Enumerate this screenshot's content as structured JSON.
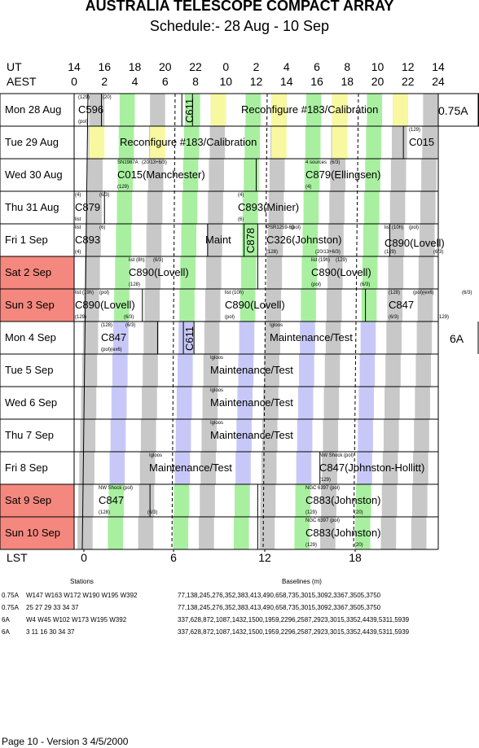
{
  "header": {
    "title": "AUSTRALIA TELESCOPE COMPACT ARRAY",
    "subtitle": "Schedule:- 28 Aug - 10 Sep"
  },
  "axes": {
    "ut_label": "UT",
    "aest_label": "AEST",
    "lst_label": "LST",
    "ut_ticks": [
      "14",
      "16",
      "18",
      "20",
      "22",
      "0",
      "2",
      "4",
      "6",
      "8",
      "10",
      "12",
      "14"
    ],
    "aest_ticks": [
      "0",
      "2",
      "4",
      "6",
      "8",
      "10",
      "12",
      "14",
      "16",
      "18",
      "20",
      "22",
      "24"
    ],
    "lst_ticks": [
      "0",
      "6",
      "12",
      "18"
    ]
  },
  "days": [
    {
      "label": "Mon  28 Aug",
      "weekend": false
    },
    {
      "label": "Tue  29 Aug",
      "weekend": false
    },
    {
      "label": "Wed  30 Aug",
      "weekend": false
    },
    {
      "label": "Thu  31 Aug",
      "weekend": false
    },
    {
      "label": "Fri    1  Sep",
      "weekend": false
    },
    {
      "label": "Sat   2  Sep",
      "weekend": true
    },
    {
      "label": "Sun   3  Sep",
      "weekend": true
    },
    {
      "label": "Mon   4  Sep",
      "weekend": false
    },
    {
      "label": "Tue   5  Sep",
      "weekend": false
    },
    {
      "label": "Wed   6  Sep",
      "weekend": false
    },
    {
      "label": "Thu   7  Sep",
      "weekend": false
    },
    {
      "label": "Fri    8  Sep",
      "weekend": false
    },
    {
      "label": "Sat   9  Sep",
      "weekend": true
    },
    {
      "label": "Sun  10  Sep",
      "weekend": true
    }
  ],
  "configs": {
    "first": "0.75A",
    "second": "6A"
  },
  "blocks": [
    {
      "row": 0,
      "text": "C596",
      "small": [
        "(129)",
        "(pol)",
        "(20)"
      ]
    },
    {
      "row": 0,
      "text": "C611",
      "vertical": true
    },
    {
      "row": 0,
      "text": "Reconfigure #183/Calibration"
    },
    {
      "row": 1,
      "text": "Reconfigure #183/Calibration"
    },
    {
      "row": 1,
      "text": "C015",
      "small": [
        "(129)"
      ]
    },
    {
      "row": 2,
      "text": "C015(Manchester)",
      "small": [
        "SN1987A",
        "(129)",
        "(20/13+6/3)"
      ]
    },
    {
      "row": 2,
      "text": "C879(Ellingsen)",
      "small": [
        "4 sources",
        "(4)",
        "(6/3)"
      ]
    },
    {
      "row": 3,
      "text": "C879",
      "small": [
        "(4)",
        "list",
        "(6/3)"
      ]
    },
    {
      "row": 3,
      "text": "C893(Minier)",
      "small": [
        "(4)",
        "(6)"
      ]
    },
    {
      "row": 4,
      "text": "C893",
      "small": [
        "list",
        "(4)",
        "(6)"
      ]
    },
    {
      "row": 4,
      "text": "Maint"
    },
    {
      "row": 4,
      "text": "C878",
      "vertical": true
    },
    {
      "row": 4,
      "text": "C326(Johnston)",
      "small": [
        "PSR1259-63",
        "(128)",
        "(pol)",
        "(20/13+6/3)"
      ]
    },
    {
      "row": 4,
      "text": "C890(Lovell)",
      "small": [
        "list (10h)",
        "(129)",
        "(pol)",
        "(6/3)"
      ]
    },
    {
      "row": 5,
      "text": "C890(Lovell)",
      "small": [
        "list (8h)",
        "(128)",
        "(6/3)"
      ]
    },
    {
      "row": 5,
      "text": "C890(Lovell)",
      "small": [
        "list (19h)",
        "(pol)",
        "(129)",
        "(6/3)"
      ]
    },
    {
      "row": 6,
      "text": "C890(Lovell)",
      "small": [
        "list (19h)",
        "(129)",
        "(pol)",
        "(6/3)"
      ]
    },
    {
      "row": 6,
      "text": "C890(Lovell)",
      "small": [
        "list (10h)",
        "(pol)"
      ]
    },
    {
      "row": 6,
      "text": "C847",
      "small": [
        "(128)",
        "(6/3)",
        "(pol)(ex6)",
        "(129)",
        "(6/3)"
      ]
    },
    {
      "row": 7,
      "text": "C847",
      "small": [
        "(128)",
        "(pol)(ex6)",
        "(6/3)"
      ]
    },
    {
      "row": 7,
      "text": "C611",
      "vertical": true
    },
    {
      "row": 7,
      "text": "Maintenance/Test",
      "small": [
        "Igloos"
      ]
    },
    {
      "row": 8,
      "text": "Maintenance/Test",
      "small": [
        "Igloos"
      ]
    },
    {
      "row": 9,
      "text": "Maintenance/Test",
      "small": [
        "Igloos"
      ]
    },
    {
      "row": 10,
      "text": "Maintenance/Test",
      "small": [
        "Igloos"
      ]
    },
    {
      "row": 11,
      "text": "Maintenance/Test",
      "small": [
        "Igloos"
      ]
    },
    {
      "row": 11,
      "text": "C847(Johnston-Hollitt)",
      "small": [
        "NW Shock",
        "(129)",
        "(pol)"
      ]
    },
    {
      "row": 12,
      "text": "C847",
      "small": [
        "NW Shock",
        "(128)",
        "(pol)",
        "(6/3)"
      ]
    },
    {
      "row": 12,
      "text": "C883(Johnston)",
      "small": [
        "NGC 6397",
        "(129)",
        "(pol)",
        "(20)"
      ]
    },
    {
      "row": 13,
      "text": "C883(Johnston)",
      "small": [
        "NGC 6397",
        "(129)",
        "(pol)",
        "(20)"
      ]
    }
  ],
  "stations": {
    "stations_header": "Stations",
    "baselines_header": "Baselines (m)",
    "rows": [
      {
        "config": "0.75A",
        "stations": "W147 W163 W172 W190 W195 W392",
        "baselines": "77,138,245,276,352,383,413,490,658,735,3015,3092,3367,3505,3750"
      },
      {
        "config": "0.75A",
        "stations": "25 27 29 33 34 37",
        "baselines": "77,138,245,276,352,383,413,490,658,735,3015,3092,3367,3505,3750"
      },
      {
        "config": "6A",
        "stations": "W4 W45 W102 W173 W195 W392",
        "baselines": "337,628,872,1087,1432,1500,1959,2296,2587,2923,3015,3352,4439,5311,5939"
      },
      {
        "config": "6A",
        "stations": "3 11 16 30 34 37",
        "baselines": "337,628,872,1087,1432,1500,1959,2296,2587,2923,3015,3352,4439,5311,5939"
      }
    ]
  },
  "footer": "Page 10 - Version 3  4/5/2000",
  "colors": {
    "weekend": "#f4877e",
    "green": "#a8f0a0",
    "grey": "#c8c8c8",
    "yellow": "#f8f8a0",
    "lavender": "#c8c8f8"
  }
}
